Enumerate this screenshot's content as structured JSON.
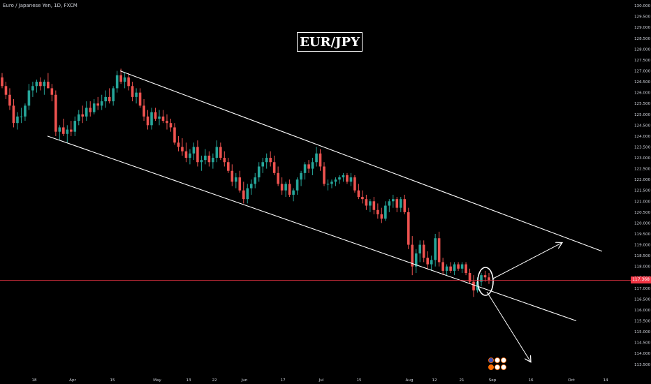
{
  "header": {
    "symbol": "Euro / Japanese Yen, 1D, FXCM",
    "title": "EUR/JPY"
  },
  "current_price": {
    "label": "117.368",
    "value": 117.368
  },
  "colors": {
    "background": "#000000",
    "up": "#26a69a",
    "down": "#ef5350",
    "drawing": "#ffffff",
    "price_line": "#f23645",
    "axis_text": "#d1d4dc"
  },
  "chart_data": {
    "type": "candlestick",
    "x_labels": [
      "18",
      "Apr",
      "15",
      "May",
      "13",
      "22",
      "Jun",
      "17",
      "Jul",
      "15",
      "Aug",
      "12",
      "21",
      "Sep",
      "16",
      "Oct",
      "14"
    ],
    "y_ticks": [
      "130.000",
      "129.500",
      "129.000",
      "128.500",
      "128.000",
      "127.500",
      "127.000",
      "126.500",
      "126.000",
      "125.500",
      "125.000",
      "124.500",
      "124.000",
      "123.500",
      "123.000",
      "122.500",
      "122.000",
      "121.500",
      "121.000",
      "120.500",
      "120.000",
      "119.500",
      "119.000",
      "118.500",
      "118.000",
      "117.500",
      "117.000",
      "116.500",
      "116.000",
      "115.500",
      "115.000",
      "114.500",
      "114.000",
      "113.500"
    ],
    "ylim": [
      113.3,
      130.1
    ],
    "grid": false,
    "candles": [
      [
        126.7,
        126.9,
        126.2,
        126.3
      ],
      [
        126.3,
        126.5,
        125.7,
        125.9
      ],
      [
        125.9,
        126.2,
        125.2,
        125.4
      ],
      [
        125.4,
        125.7,
        124.4,
        124.6
      ],
      [
        124.6,
        125.1,
        124.3,
        124.9
      ],
      [
        124.9,
        125.3,
        124.6,
        124.9
      ],
      [
        124.9,
        125.5,
        124.7,
        125.4
      ],
      [
        125.4,
        126.4,
        125.2,
        126.1
      ],
      [
        126.1,
        126.5,
        125.8,
        126.3
      ],
      [
        126.3,
        126.6,
        126.0,
        126.5
      ],
      [
        126.5,
        126.7,
        126.1,
        126.3
      ],
      [
        126.3,
        126.6,
        125.9,
        126.5
      ],
      [
        126.5,
        126.9,
        126.2,
        126.2
      ],
      [
        126.2,
        126.4,
        125.6,
        125.9
      ],
      [
        125.9,
        126.1,
        124.0,
        124.2
      ],
      [
        124.2,
        124.5,
        123.8,
        124.4
      ],
      [
        124.4,
        124.8,
        124.0,
        124.1
      ],
      [
        124.1,
        124.5,
        123.7,
        124.3
      ],
      [
        124.3,
        124.7,
        124.0,
        124.2
      ],
      [
        124.2,
        124.9,
        124.0,
        124.7
      ],
      [
        124.7,
        125.2,
        124.5,
        125.0
      ],
      [
        125.0,
        125.4,
        124.6,
        124.9
      ],
      [
        124.9,
        125.6,
        124.7,
        125.3
      ],
      [
        125.3,
        125.6,
        124.9,
        125.1
      ],
      [
        125.1,
        125.7,
        125.0,
        125.5
      ],
      [
        125.5,
        125.8,
        125.2,
        125.4
      ],
      [
        125.4,
        125.9,
        125.2,
        125.6
      ],
      [
        125.6,
        126.1,
        125.3,
        125.8
      ],
      [
        125.8,
        126.2,
        125.5,
        125.6
      ],
      [
        125.6,
        126.3,
        125.4,
        126.2
      ],
      [
        126.2,
        127.0,
        126.0,
        126.8
      ],
      [
        126.8,
        127.1,
        126.4,
        126.5
      ],
      [
        126.5,
        126.9,
        126.2,
        126.7
      ],
      [
        126.7,
        126.9,
        126.1,
        126.3
      ],
      [
        126.3,
        126.5,
        125.6,
        125.8
      ],
      [
        125.8,
        126.2,
        125.5,
        126.0
      ],
      [
        126.0,
        126.2,
        125.3,
        125.4
      ],
      [
        125.4,
        125.7,
        124.7,
        124.9
      ],
      [
        124.9,
        125.2,
        124.3,
        124.5
      ],
      [
        124.5,
        125.3,
        124.3,
        125.1
      ],
      [
        125.1,
        125.3,
        124.7,
        124.8
      ],
      [
        124.8,
        125.2,
        124.5,
        124.9
      ],
      [
        124.9,
        125.2,
        124.6,
        124.7
      ],
      [
        124.7,
        125.0,
        124.3,
        124.6
      ],
      [
        124.6,
        124.8,
        124.2,
        124.4
      ],
      [
        124.4,
        124.6,
        123.6,
        123.7
      ],
      [
        123.7,
        124.0,
        123.3,
        123.5
      ],
      [
        123.5,
        123.9,
        123.1,
        123.3
      ],
      [
        123.3,
        123.7,
        122.8,
        123.0
      ],
      [
        123.0,
        123.4,
        122.7,
        123.2
      ],
      [
        123.2,
        123.7,
        122.9,
        123.5
      ],
      [
        123.5,
        123.8,
        122.6,
        122.8
      ],
      [
        122.8,
        123.1,
        122.4,
        122.9
      ],
      [
        122.9,
        123.4,
        122.7,
        123.1
      ],
      [
        123.1,
        123.3,
        122.6,
        122.8
      ],
      [
        122.8,
        123.2,
        122.5,
        123.0
      ],
      [
        123.0,
        123.8,
        122.8,
        123.5
      ],
      [
        123.5,
        123.7,
        122.9,
        123.0
      ],
      [
        123.0,
        123.3,
        122.6,
        122.8
      ],
      [
        122.8,
        123.0,
        122.3,
        122.4
      ],
      [
        122.4,
        122.7,
        121.7,
        121.9
      ],
      [
        121.9,
        122.3,
        121.6,
        122.1
      ],
      [
        122.1,
        122.4,
        121.4,
        121.5
      ],
      [
        121.5,
        121.9,
        120.9,
        121.1
      ],
      [
        121.1,
        121.8,
        120.9,
        121.6
      ],
      [
        121.6,
        122.0,
        121.3,
        121.8
      ],
      [
        121.8,
        122.3,
        121.6,
        122.1
      ],
      [
        122.1,
        122.8,
        121.9,
        122.6
      ],
      [
        122.6,
        123.0,
        122.3,
        122.8
      ],
      [
        122.8,
        123.2,
        122.5,
        123.0
      ],
      [
        123.0,
        123.3,
        122.6,
        122.8
      ],
      [
        122.8,
        123.1,
        122.2,
        122.3
      ],
      [
        122.3,
        122.6,
        121.7,
        121.8
      ],
      [
        121.8,
        122.1,
        121.3,
        121.5
      ],
      [
        121.5,
        121.9,
        121.2,
        121.8
      ],
      [
        121.8,
        122.0,
        121.2,
        121.3
      ],
      [
        121.3,
        121.6,
        121.0,
        121.5
      ],
      [
        121.5,
        122.1,
        121.3,
        122.0
      ],
      [
        122.0,
        122.4,
        121.7,
        122.3
      ],
      [
        122.3,
        122.8,
        122.0,
        122.7
      ],
      [
        122.7,
        122.9,
        122.3,
        122.5
      ],
      [
        122.5,
        123.0,
        122.2,
        122.8
      ],
      [
        122.8,
        123.5,
        122.6,
        123.2
      ],
      [
        123.2,
        123.4,
        122.4,
        122.6
      ],
      [
        122.6,
        122.8,
        121.7,
        121.8
      ],
      [
        121.8,
        122.0,
        121.5,
        121.8
      ],
      [
        121.8,
        122.0,
        121.6,
        121.9
      ],
      [
        121.9,
        122.1,
        121.7,
        122.0
      ],
      [
        122.0,
        122.2,
        121.8,
        122.1
      ],
      [
        122.1,
        122.3,
        121.9,
        122.2
      ],
      [
        122.2,
        122.3,
        121.8,
        121.9
      ],
      [
        121.9,
        122.3,
        121.7,
        122.1
      ],
      [
        122.1,
        122.2,
        121.4,
        121.5
      ],
      [
        121.5,
        121.8,
        121.1,
        121.2
      ],
      [
        121.2,
        121.5,
        120.9,
        121.1
      ],
      [
        121.1,
        121.3,
        120.6,
        120.8
      ],
      [
        120.8,
        121.1,
        120.5,
        121.0
      ],
      [
        121.0,
        121.2,
        120.4,
        120.6
      ],
      [
        120.6,
        120.9,
        120.2,
        120.4
      ],
      [
        120.4,
        120.7,
        120.0,
        120.2
      ],
      [
        120.2,
        121.0,
        120.1,
        120.8
      ],
      [
        120.8,
        121.1,
        120.5,
        121.0
      ],
      [
        121.0,
        121.3,
        120.7,
        121.1
      ],
      [
        121.1,
        121.2,
        120.5,
        120.7
      ],
      [
        120.7,
        121.2,
        120.5,
        121.1
      ],
      [
        121.1,
        121.3,
        120.4,
        120.5
      ],
      [
        120.5,
        120.7,
        118.8,
        119.0
      ],
      [
        119.0,
        119.4,
        117.6,
        118.0
      ],
      [
        118.0,
        118.8,
        117.7,
        118.6
      ],
      [
        118.6,
        119.2,
        118.2,
        119.0
      ],
      [
        119.0,
        119.2,
        118.2,
        118.4
      ],
      [
        118.4,
        118.7,
        117.9,
        118.1
      ],
      [
        118.1,
        118.5,
        117.8,
        118.3
      ],
      [
        118.3,
        119.5,
        118.0,
        119.3
      ],
      [
        119.3,
        119.6,
        118.0,
        118.2
      ],
      [
        118.2,
        118.4,
        117.6,
        117.8
      ],
      [
        117.8,
        118.1,
        117.6,
        118.0
      ],
      [
        118.0,
        118.2,
        117.7,
        117.8
      ],
      [
        117.8,
        118.2,
        117.6,
        118.1
      ],
      [
        118.1,
        118.2,
        117.8,
        117.9
      ],
      [
        117.9,
        118.2,
        117.7,
        118.1
      ],
      [
        118.1,
        118.2,
        117.6,
        117.7
      ],
      [
        117.7,
        117.9,
        117.2,
        117.3
      ],
      [
        117.3,
        117.6,
        116.6,
        116.9
      ],
      [
        116.9,
        117.5,
        116.8,
        117.3
      ],
      [
        117.3,
        117.7,
        117.1,
        117.6
      ],
      [
        117.6,
        117.8,
        117.3,
        117.5
      ],
      [
        117.5,
        117.7,
        117.2,
        117.37
      ]
    ],
    "drawings": {
      "upper_channel": [
        [
          172.0,
          127.0
        ],
        [
          862.0,
          118.7
        ]
      ],
      "lower_channel": [
        [
          68.0,
          124.0
        ],
        [
          825.0,
          115.5
        ]
      ],
      "up_arrow_end": [
        805.0,
        119.1
      ],
      "down_arrow_end": [
        760.0,
        113.6
      ]
    }
  }
}
